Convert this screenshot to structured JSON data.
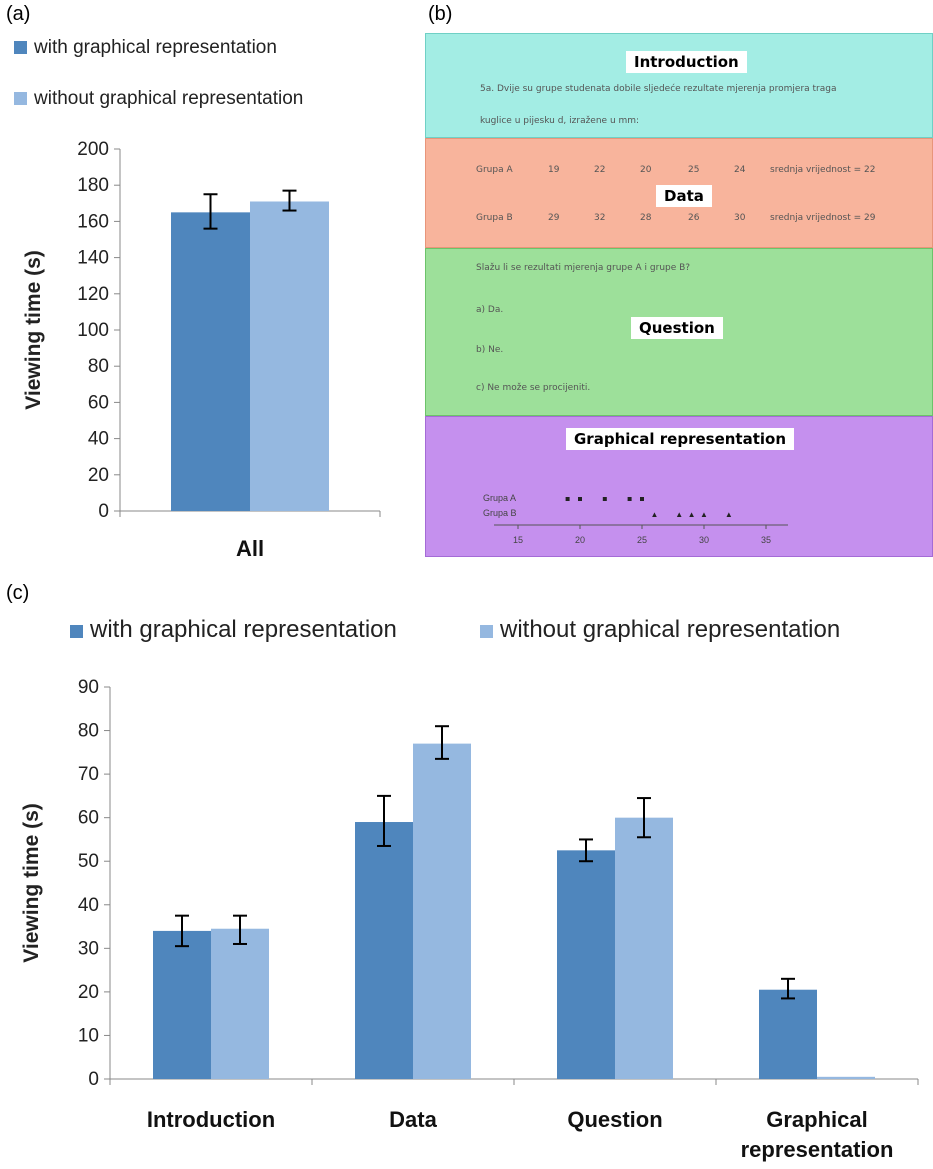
{
  "panels": {
    "a": "(a)",
    "b": "(b)",
    "c": "(c)"
  },
  "colors": {
    "with": "#4f86bd",
    "without": "#95b8e0"
  },
  "chart_data": [
    {
      "type": "bar",
      "ylabel": "Viewing time (s)",
      "ylim": [
        0,
        200
      ],
      "yticks": [
        0,
        20,
        40,
        60,
        80,
        100,
        120,
        140,
        160,
        180,
        200
      ],
      "categories": [
        "All"
      ],
      "legend": [
        "with graphical representation",
        "without graphical representation"
      ],
      "series": [
        {
          "name": "with graphical representation",
          "values": [
            165
          ],
          "err_low": [
            156
          ],
          "err_high": [
            175
          ]
        },
        {
          "name": "without graphical representation",
          "values": [
            171
          ],
          "err_low": [
            166
          ],
          "err_high": [
            177
          ]
        }
      ]
    },
    {
      "type": "bar",
      "ylabel": "Viewing time (s)",
      "ylim": [
        0,
        90
      ],
      "yticks": [
        0,
        10,
        20,
        30,
        40,
        50,
        60,
        70,
        80,
        90
      ],
      "categories": [
        "Introduction",
        "Data",
        "Question",
        "Graphical representation"
      ],
      "category_lines": [
        [
          "Introduction"
        ],
        [
          "Data"
        ],
        [
          "Question"
        ],
        [
          "Graphical",
          "representation"
        ]
      ],
      "legend": [
        "with graphical representation",
        "without graphical representation"
      ],
      "series": [
        {
          "name": "with graphical representation",
          "values": [
            34,
            59,
            52.5,
            20.5
          ],
          "err_low": [
            30.5,
            53.5,
            50,
            18.5
          ],
          "err_high": [
            37.5,
            65,
            55,
            23
          ],
          "error_bars": [
            true,
            true,
            true,
            true
          ]
        },
        {
          "name": "without graphical representation",
          "values": [
            34.5,
            77,
            60,
            0.5
          ],
          "err_low": [
            31,
            73.5,
            55.5,
            0.5
          ],
          "err_high": [
            37.5,
            81,
            64.5,
            0.5
          ],
          "error_bars": [
            true,
            true,
            true,
            false
          ]
        }
      ]
    }
  ],
  "figure_b": {
    "introduction": {
      "title": "Introduction",
      "text1": "5a. Dvije su grupe studenata dobile sljedeće rezultate mjerenja promjera traga",
      "text2": "kuglice u pijesku d, izražene u mm:"
    },
    "data": {
      "title": "Data",
      "rowA": {
        "label": "Grupa A",
        "values": [
          "19",
          "22",
          "20",
          "25",
          "24"
        ],
        "mean": "srednja vrijednost = 22"
      },
      "rowB": {
        "label": "Grupa B",
        "values": [
          "29",
          "32",
          "28",
          "26",
          "30"
        ],
        "mean": "srednja vrijednost = 29"
      }
    },
    "question": {
      "title": "Question",
      "prompt": "Slažu li se rezultati mjerenja grupe A i grupe B?",
      "a": "a) Da.",
      "b": "b) Ne.",
      "c": "c) Ne može se procijeniti."
    },
    "graphical": {
      "title": "Graphical representation",
      "labelA": "Grupa A",
      "labelB": "Grupa B",
      "ticks": [
        "15",
        "20",
        "25",
        "30",
        "35"
      ],
      "groupA": [
        19,
        20,
        22,
        24,
        25
      ],
      "groupB": [
        26,
        28,
        29,
        30,
        32
      ]
    },
    "colors": {
      "intro": "#a3ede4",
      "data": "#f8b49c",
      "question": "#9de09a",
      "graphical": "#c590ee"
    }
  }
}
